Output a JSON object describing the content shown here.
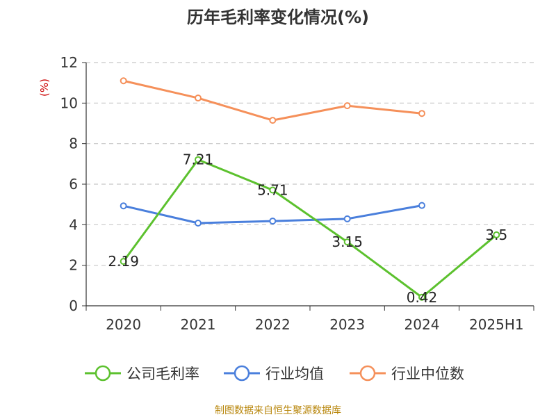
{
  "chart_data": {
    "type": "line",
    "title": "历年毛利率变化情况(%)",
    "ylabel": "(%)",
    "xlabel": "",
    "categories": [
      "2020",
      "2021",
      "2022",
      "2023",
      "2024",
      "2025H1"
    ],
    "ylim": [
      0,
      12
    ],
    "yticks": [
      "0",
      "2",
      "4",
      "6",
      "8",
      "10",
      "12"
    ],
    "grid": "horizontal-dashed",
    "legend_position": "bottom",
    "series": [
      {
        "name": "公司毛利率",
        "color": "#5cc12e",
        "values": [
          2.19,
          7.21,
          5.71,
          3.15,
          0.42,
          3.5
        ],
        "labels": [
          "2.19",
          "7.21",
          "5.71",
          "3.15",
          "0.42",
          "3.5"
        ]
      },
      {
        "name": "行业均值",
        "color": "#4a7fdc",
        "values": [
          4.93,
          4.08,
          4.18,
          4.29,
          4.95,
          null
        ]
      },
      {
        "name": "行业中位数",
        "color": "#f5905a",
        "values": [
          11.1,
          10.25,
          9.15,
          9.87,
          9.49,
          null
        ]
      }
    ]
  },
  "source_note": "制图数据来自恒生聚源数据库"
}
